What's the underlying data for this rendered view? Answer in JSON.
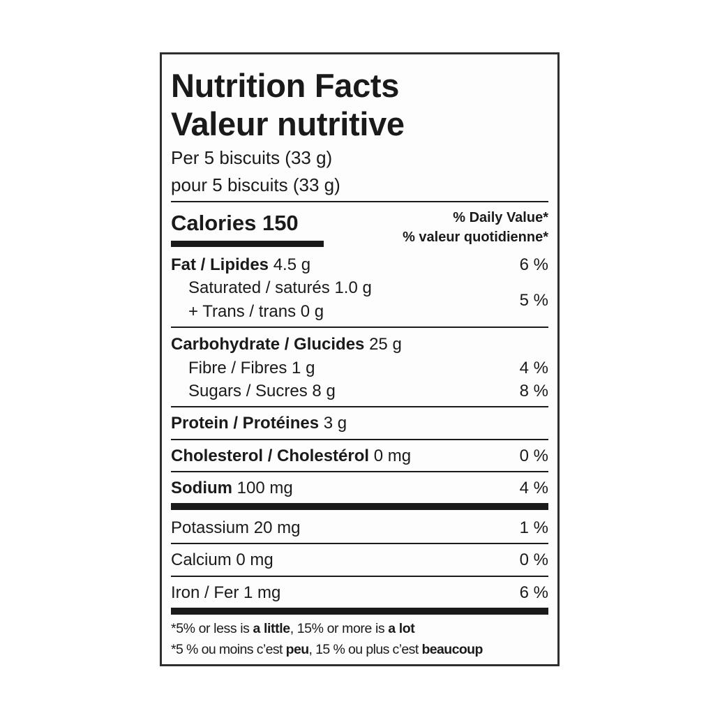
{
  "title_en": "Nutrition Facts",
  "title_fr": "Valeur nutritive",
  "serving_en": "Per 5 biscuits (33 g)",
  "serving_fr": "pour 5 biscuits (33 g)",
  "calories_label": "Calories 150",
  "dv_header_en": "% Daily Value*",
  "dv_header_fr": "% valeur quotidienne*",
  "rows": {
    "fat": {
      "name": "Fat / Lipides",
      "amount": "4.5 g",
      "dv": "6 %"
    },
    "saturated": {
      "name": "Saturated / saturés",
      "amount": "1.0 g"
    },
    "trans": {
      "name": "+ Trans / trans",
      "amount": "0 g"
    },
    "sat_trans_dv": "5 %",
    "carb": {
      "name": "Carbohydrate / Glucides",
      "amount": "25 g"
    },
    "fibre": {
      "name": "Fibre / Fibres",
      "amount": "1 g",
      "dv": "4 %"
    },
    "sugars": {
      "name": "Sugars / Sucres",
      "amount": "8 g",
      "dv": "8 %"
    },
    "protein": {
      "name": "Protein / Protéines",
      "amount": "3 g"
    },
    "cholesterol": {
      "name": "Cholesterol / Cholestérol",
      "amount": "0 mg",
      "dv": "0 %"
    },
    "sodium": {
      "name": "Sodium",
      "amount": "100 mg",
      "dv": "4 %"
    },
    "potassium": {
      "name": "Potassium",
      "amount": "20 mg",
      "dv": "1 %"
    },
    "calcium": {
      "name": "Calcium",
      "amount": "0 mg",
      "dv": "0 %"
    },
    "iron": {
      "name": "Iron / Fer",
      "amount": "1 mg",
      "dv": "6 %"
    }
  },
  "footnote_en": {
    "a": "*5% or less is ",
    "b": "a little",
    "c": ", 15% or more is ",
    "d": "a lot"
  },
  "footnote_fr": {
    "a": "*5 % ou moins c’est ",
    "b": "peu",
    "c": ", 15 % ou plus c’est ",
    "d": "beaucoup"
  }
}
